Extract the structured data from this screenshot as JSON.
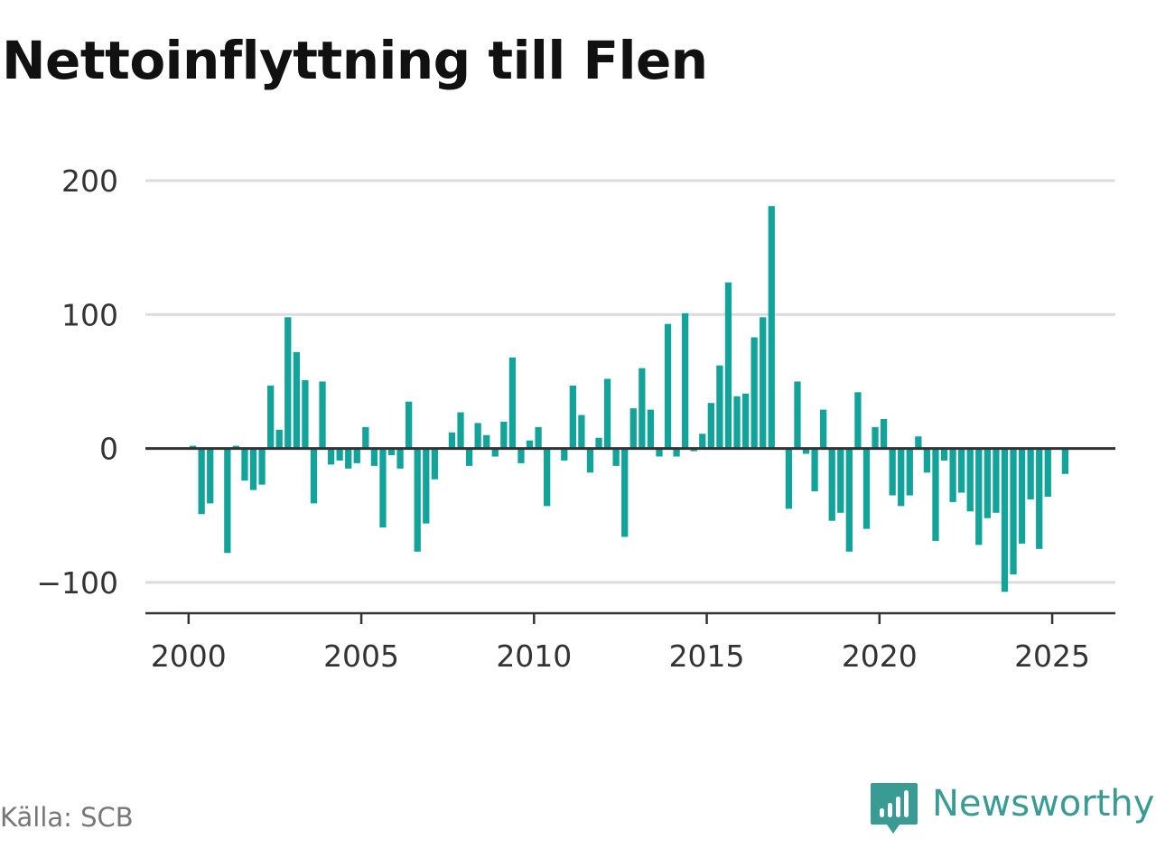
{
  "title": "Nettoinflyttning till Flen",
  "source": "Källa: SCB",
  "brand": {
    "name": "Newsworthy",
    "icon": "newsworthy-logo-icon",
    "color": "#3a9b94"
  },
  "colors": {
    "bar": "#12a39a",
    "grid": "#dcdcdc",
    "zero_line": "#333333",
    "axis": "#333333"
  },
  "chart_data": {
    "type": "bar",
    "title": "Nettoinflyttning till Flen",
    "xlabel": "",
    "ylabel": "",
    "x_ticks": [
      2000,
      2005,
      2010,
      2015,
      2020,
      2025
    ],
    "x_tick_labels": [
      "2000",
      "2005",
      "2010",
      "2015",
      "2020",
      "2025"
    ],
    "xlim": [
      1998.75,
      2026.85
    ],
    "y_ticks": [
      200,
      100,
      0,
      -100
    ],
    "y_tick_labels": [
      "200",
      "100",
      "0",
      "−100"
    ],
    "ylim": [
      -123,
      200
    ],
    "grid": true,
    "bar_width_years": 0.19,
    "series": [
      {
        "x_start": 2000.125,
        "x_step": 0.25,
        "values": [
          2,
          -49,
          -41,
          0,
          -78,
          2,
          -24,
          -31,
          -27,
          47,
          14,
          98,
          72,
          51,
          -41,
          50,
          -12,
          -9,
          -15,
          -11,
          16,
          -13,
          -59,
          -5,
          -15,
          35,
          -77,
          -56,
          -23,
          1,
          12,
          27,
          -13,
          19,
          10,
          -6,
          20,
          68,
          -11,
          6,
          16,
          -43,
          0,
          -9,
          47,
          25,
          -18,
          8,
          52,
          -13,
          -66,
          30,
          60,
          29,
          -6,
          93,
          -6,
          101,
          -2,
          11,
          34,
          62,
          124,
          39,
          41,
          83,
          98,
          181,
          0,
          -45,
          50,
          -4,
          -32,
          29,
          -54,
          -48,
          -77,
          42,
          -60,
          16,
          22,
          -35,
          -43,
          -35,
          9,
          -18,
          -69,
          -9,
          -40,
          -33,
          -47,
          -72,
          -52,
          -48,
          -107,
          -94,
          -71,
          -38,
          -75,
          -36,
          0,
          -19
        ]
      }
    ]
  }
}
